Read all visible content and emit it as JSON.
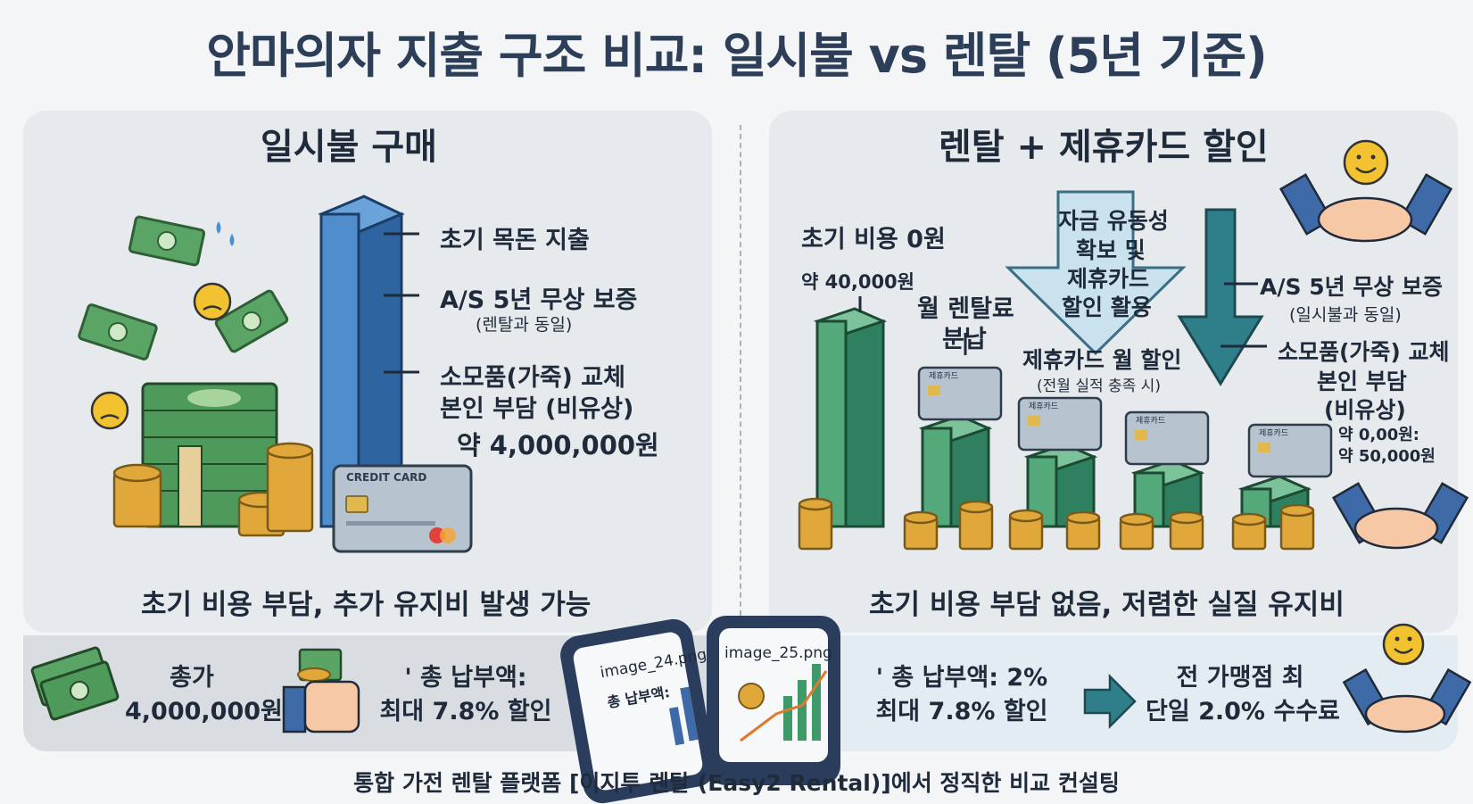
{
  "title": "안마의자 지출 구조 비교: 일시불 vs 렌탈 (5년 기준)",
  "left": {
    "heading": "일시불 구매",
    "label_initial": "초기 목돈 지출",
    "label_as": "A/S 5년 무상 보증",
    "label_as_sub": "(렌탈과 동일)",
    "label_consumable_1": "소모품(가죽) 교체",
    "label_consumable_2": "본인 부담 (비유상)",
    "label_amount": "약 4,000,000원",
    "card_text": "CREDIT CARD",
    "caption": "초기 비용 부담, 추가 유지비 발생 가능"
  },
  "right": {
    "heading": "렌탈 + 제휴카드 할인",
    "label_initial_cost": "초기 비용 0원",
    "label_approx": "약 40,000원",
    "label_monthly_1": "월 렌탈료",
    "label_monthly_2": "분납",
    "arrow_text_1": "자금 유동성",
    "arrow_text_2": "확보 및",
    "arrow_text_3": "제휴카드",
    "arrow_text_4": "할인 활용",
    "label_card_discount": "제휴카드 월 할인",
    "label_card_discount_sub": "(전월 실적 충족 시)",
    "label_as": "A/S 5년 무상 보증",
    "label_as_sub": "(일시불과 동일)",
    "label_consumable_1": "소모품(가죽) 교체",
    "label_consumable_2": "본인 부담",
    "label_consumable_3": "(비유상)",
    "label_range_1": "약 0,00원:",
    "label_range_2": "약 50,000원",
    "card_text": "제휴카드",
    "caption": "초기 비용 부담 없음, 저렴한 실질 유지비"
  },
  "bottom": {
    "total_label_1": "총가",
    "total_label_2": "4,000,000원",
    "pay_label_1": "' 총 납부액:",
    "pay_label_2": "최대 7.8% 할인",
    "phone1_file": "image_24.png",
    "phone1_text": "총 납부액:",
    "phone2_file": "image_25.png",
    "right_pay_1": "' 총 납부액: 2%",
    "right_pay_2": "최대 7.8% 할인",
    "fee_1": "전 가맹점 최",
    "fee_2": "단일 2.0% 수수료"
  },
  "footer": "통합 가전 렌탈 플랫폼 [이지투 렌탈 (Easy2 Rental)]에서 정직한 비교 컨설팅",
  "colors": {
    "blue_bar": "#3d78b8",
    "green_bar": "#3f9a6a",
    "teal_arrow": "#2f7f8a",
    "light_arrow": "#c9e2ee",
    "coin": "#e0a83a",
    "cash": "#4d9a5a"
  }
}
